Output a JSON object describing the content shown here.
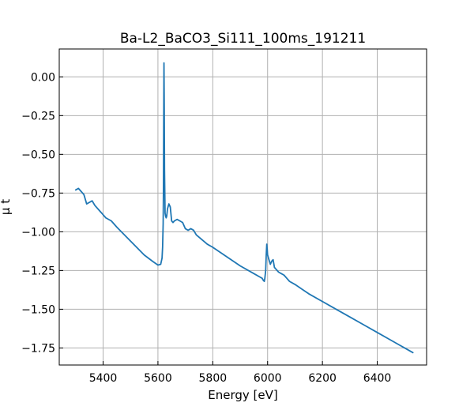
{
  "chart_data": {
    "type": "line",
    "title": "Ba-L2_BaCO3_Si111_100ms_191211",
    "xlabel": "Energy [eV]",
    "ylabel": "μ t",
    "xlim": [
      5240,
      6580
    ],
    "ylim": [
      -1.86,
      0.18
    ],
    "x_ticks": [
      5400,
      5600,
      5800,
      6000,
      6200,
      6400
    ],
    "y_ticks": [
      0.0,
      -0.25,
      -0.5,
      -0.75,
      -1.0,
      -1.25,
      -1.5,
      -1.75
    ],
    "y_tick_labels": [
      "0.00",
      "−0.25",
      "−0.50",
      "−0.75",
      "−1.00",
      "−1.25",
      "−1.50",
      "−1.75"
    ],
    "grid": true,
    "series": [
      {
        "color": "#1f77b4",
        "x": [
          5300,
          5310,
          5320,
          5330,
          5340,
          5350,
          5360,
          5370,
          5390,
          5410,
          5430,
          5450,
          5500,
          5550,
          5580,
          5600,
          5610,
          5615,
          5617,
          5619,
          5620,
          5621,
          5622,
          5623,
          5624,
          5626,
          5628,
          5630,
          5632,
          5635,
          5640,
          5645,
          5650,
          5655,
          5660,
          5670,
          5680,
          5690,
          5700,
          5710,
          5720,
          5730,
          5740,
          5760,
          5780,
          5800,
          5850,
          5900,
          5950,
          5970,
          5980,
          5985,
          5988,
          5990,
          5993,
          5995,
          5997,
          6000,
          6005,
          6010,
          6015,
          6020,
          6025,
          6030,
          6040,
          6050,
          6060,
          6070,
          6080,
          6100,
          6150,
          6200,
          6250,
          6300,
          6350,
          6400,
          6450,
          6500,
          6530
        ],
        "y": [
          -0.73,
          -0.72,
          -0.74,
          -0.76,
          -0.82,
          -0.81,
          -0.8,
          -0.83,
          -0.87,
          -0.91,
          -0.93,
          -0.97,
          -1.06,
          -1.15,
          -1.19,
          -1.215,
          -1.21,
          -1.17,
          -1.1,
          -0.95,
          -0.75,
          -0.3,
          0.09,
          -0.2,
          -0.6,
          -0.88,
          -0.9,
          -0.91,
          -0.9,
          -0.85,
          -0.82,
          -0.84,
          -0.93,
          -0.94,
          -0.93,
          -0.92,
          -0.93,
          -0.94,
          -0.98,
          -0.99,
          -0.98,
          -0.99,
          -1.02,
          -1.05,
          -1.08,
          -1.1,
          -1.16,
          -1.22,
          -1.27,
          -1.29,
          -1.3,
          -1.315,
          -1.32,
          -1.3,
          -1.25,
          -1.15,
          -1.08,
          -1.15,
          -1.18,
          -1.21,
          -1.19,
          -1.18,
          -1.23,
          -1.24,
          -1.26,
          -1.27,
          -1.28,
          -1.3,
          -1.32,
          -1.34,
          -1.4,
          -1.45,
          -1.5,
          -1.55,
          -1.6,
          -1.65,
          -1.7,
          -1.75,
          -1.78
        ]
      }
    ]
  }
}
